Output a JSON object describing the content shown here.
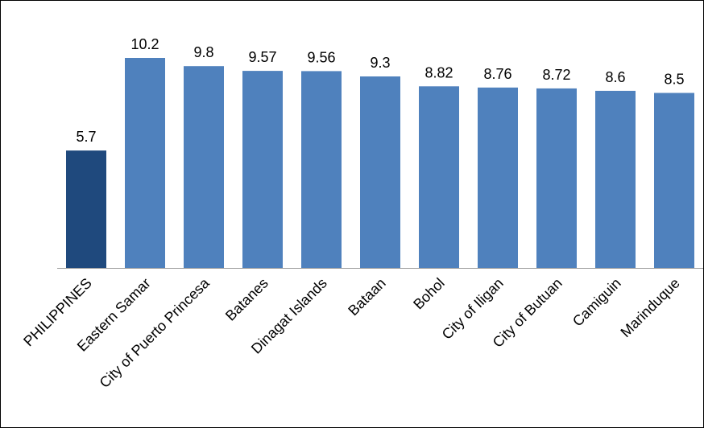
{
  "chart_data": {
    "type": "bar",
    "categories": [
      "PHILIPPINES",
      "Eastern Samar",
      "City of Puerto Princesa",
      "Batanes",
      "Dinagat Islands",
      "Bataan",
      "Bohol",
      "City of Iligan",
      "City of Butuan",
      "Camiguin",
      "Marinduque"
    ],
    "values": [
      5.7,
      10.2,
      9.8,
      9.57,
      9.56,
      9.3,
      8.82,
      8.76,
      8.72,
      8.6,
      8.5
    ],
    "value_labels": [
      "5.7",
      "10.2",
      "9.8",
      "9.57",
      "9.56",
      "9.3",
      "8.82",
      "8.76",
      "8.72",
      "8.6",
      "8.5"
    ],
    "ylim": [
      0,
      10.2
    ],
    "grid": false,
    "legend": "none",
    "colors": {
      "highlight": "#1f497d",
      "bar": "#4f81bd",
      "axis": "#999999",
      "text": "#000000"
    }
  }
}
